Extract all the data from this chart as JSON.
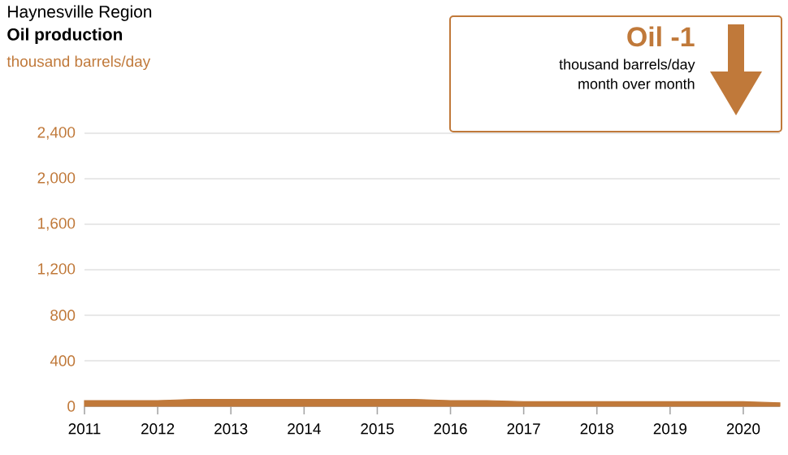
{
  "chart_data": {
    "type": "area",
    "title": "Haynesville Region",
    "subtitle": "Oil production",
    "ylabel": "thousand barrels/day",
    "annotations": [
      "Oil -1",
      "thousand barrels/day",
      "month over month"
    ],
    "x": [
      2011.0,
      2011.5,
      2012.0,
      2012.5,
      2013.0,
      2013.5,
      2014.0,
      2014.5,
      2015.0,
      2015.5,
      2016.0,
      2016.5,
      2017.0,
      2017.5,
      2018.0,
      2018.5,
      2019.0,
      2019.5,
      2020.0,
      2020.5
    ],
    "values": [
      50,
      50,
      50,
      60,
      60,
      60,
      60,
      60,
      60,
      60,
      50,
      50,
      40,
      40,
      40,
      40,
      40,
      40,
      40,
      30
    ],
    "color": "#c0793a",
    "xlim": [
      2011,
      2020.5
    ],
    "xticks": [
      2011,
      2012,
      2013,
      2014,
      2015,
      2016,
      2017,
      2018,
      2019,
      2020
    ],
    "ylim": [
      0,
      2400
    ],
    "yticks": [
      0,
      400,
      800,
      {
        "value": 1200,
        "label": "1,200"
      },
      {
        "value": 1600,
        "label": "1,600"
      },
      {
        "value": 2000,
        "label": "2,000"
      },
      {
        "value": 2400,
        "label": "2,400"
      }
    ],
    "grid": "y"
  }
}
